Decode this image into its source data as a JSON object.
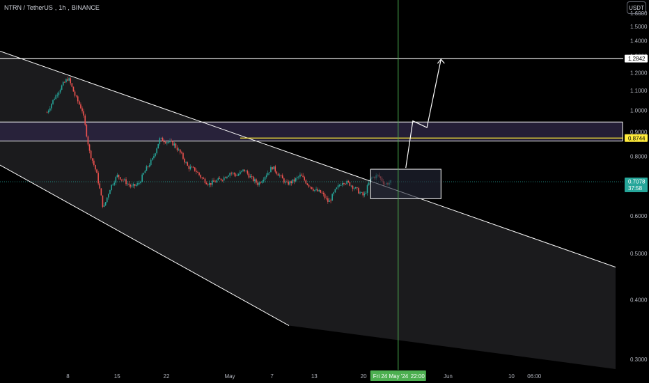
{
  "header": {
    "symbol": "NTRN / TetherUS",
    "interval": "1h",
    "exchange": "BINANCE",
    "currency_button": "USDT"
  },
  "colors": {
    "background": "#000000",
    "channel_fill": "#1b1b1d",
    "zone_fill": "#2a2340",
    "candle_up": "#26a69a",
    "candle_down": "#ef5350",
    "drawing": "#ffffff",
    "yellow_line": "#ffeb3b",
    "cursor_line": "#4caf50"
  },
  "chart_data": {
    "type": "candlestick",
    "y_axis": {
      "scale": "log",
      "range": [
        0.285,
        1.66
      ],
      "ticks": [
        "1.6000",
        "1.5000",
        "1.4000",
        "1.3000",
        "1.2000",
        "1.1000",
        "1.0000",
        "0.9000",
        "0.8000",
        "0.7000",
        "0.6000",
        "0.5000",
        "0.4000",
        "0.3000"
      ]
    },
    "x_axis": {
      "ticks": [
        "8",
        "15",
        "22",
        "May",
        "7",
        "13",
        "20",
        "Jun",
        "10",
        "06:00"
      ],
      "cursor_label": "Fri 24 May '24",
      "cursor_time": "22:00"
    },
    "price_path": [
      [
        "2024-04-05",
        0.99
      ],
      [
        "2024-04-06",
        1.06
      ],
      [
        "2024-04-07",
        1.12
      ],
      [
        "2024-04-08",
        1.17
      ],
      [
        "2024-04-09",
        1.07
      ],
      [
        "2024-04-10",
        1.0
      ],
      [
        "2024-04-11",
        0.82
      ],
      [
        "2024-04-12",
        0.74
      ],
      [
        "2024-04-13",
        0.62
      ],
      [
        "2024-04-14",
        0.69
      ],
      [
        "2024-04-15",
        0.73
      ],
      [
        "2024-04-16",
        0.71
      ],
      [
        "2024-04-17",
        0.69
      ],
      [
        "2024-04-18",
        0.7
      ],
      [
        "2024-04-19",
        0.75
      ],
      [
        "2024-04-20",
        0.79
      ],
      [
        "2024-04-21",
        0.87
      ],
      [
        "2024-04-22",
        0.86
      ],
      [
        "2024-04-23",
        0.85
      ],
      [
        "2024-04-24",
        0.81
      ],
      [
        "2024-04-25",
        0.76
      ],
      [
        "2024-04-26",
        0.75
      ],
      [
        "2024-04-27",
        0.72
      ],
      [
        "2024-04-28",
        0.7
      ],
      [
        "2024-04-29",
        0.71
      ],
      [
        "2024-04-30",
        0.72
      ],
      [
        "2024-05-01",
        0.74
      ],
      [
        "2024-05-02",
        0.73
      ],
      [
        "2024-05-03",
        0.75
      ],
      [
        "2024-05-04",
        0.72
      ],
      [
        "2024-05-05",
        0.7
      ],
      [
        "2024-05-06",
        0.73
      ],
      [
        "2024-05-07",
        0.76
      ],
      [
        "2024-05-08",
        0.73
      ],
      [
        "2024-05-09",
        0.7
      ],
      [
        "2024-05-10",
        0.71
      ],
      [
        "2024-05-11",
        0.73
      ],
      [
        "2024-05-12",
        0.7
      ],
      [
        "2024-05-13",
        0.68
      ],
      [
        "2024-05-14",
        0.67
      ],
      [
        "2024-05-15",
        0.64
      ],
      [
        "2024-05-16",
        0.68
      ],
      [
        "2024-05-17",
        0.71
      ],
      [
        "2024-05-18",
        0.7
      ],
      [
        "2024-05-19",
        0.68
      ],
      [
        "2024-05-20",
        0.66
      ],
      [
        "2024-05-21",
        0.72
      ],
      [
        "2024-05-22",
        0.73
      ],
      [
        "2024-05-23",
        0.7
      ],
      [
        "2024-05-24",
        0.708
      ]
    ],
    "channel": {
      "upper": [
        [
          "2024-04-01",
          1.29
        ],
        [
          "2024-06-21",
          0.49
        ]
      ],
      "lower": [
        [
          "2024-04-01",
          0.73
        ],
        [
          "2024-05-18",
          0.3
        ]
      ]
    },
    "supply_zone": {
      "top": 0.945,
      "bottom": 0.862
    },
    "yellow_level": 0.8744,
    "white_level": 1.2842,
    "consolidation_box": {
      "from": "2024-05-21",
      "to": "2024-05-31",
      "top": 0.752,
      "bottom": 0.652
    },
    "projection_path": [
      [
        "2024-05-26",
        0.757
      ],
      [
        "2024-05-27",
        0.95
      ],
      [
        "2024-05-29",
        0.92
      ],
      [
        "2024-05-31",
        1.28
      ]
    ],
    "price_labels": [
      {
        "value": "1.2842",
        "style": "white"
      },
      {
        "value": "0.8744",
        "style": "yellow"
      },
      {
        "value": "0.7078",
        "sub": "37:58",
        "style": "current"
      }
    ]
  }
}
